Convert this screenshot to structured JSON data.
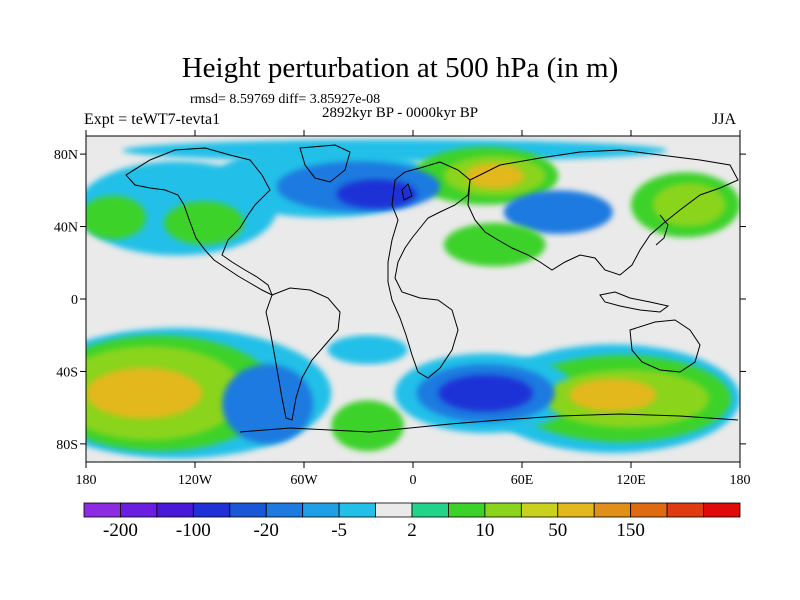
{
  "title": "Height perturbation at 500 hPa (in m)",
  "stats": "rmsd= 8.59769 diff= 3.85927e-08",
  "expt": "Expt = teWT7-tevta1",
  "period": "2892kyr BP - 0000kyr BP",
  "season": "JJA",
  "lat_ticks": [
    {
      "value": 80,
      "label": "80N"
    },
    {
      "value": 40,
      "label": "40N"
    },
    {
      "value": 0,
      "label": "0"
    },
    {
      "value": -40,
      "label": "40S"
    },
    {
      "value": -80,
      "label": "80S"
    }
  ],
  "lon_ticks": [
    {
      "value": -180,
      "label": "180"
    },
    {
      "value": -120,
      "label": "120W"
    },
    {
      "value": -60,
      "label": "60W"
    },
    {
      "value": 0,
      "label": "0"
    },
    {
      "value": 60,
      "label": "60E"
    },
    {
      "value": 120,
      "label": "120E"
    },
    {
      "value": 180,
      "label": "180"
    }
  ],
  "map_extent": {
    "lon": [
      -180,
      180
    ],
    "lat": [
      -90,
      90
    ]
  },
  "colorbar": {
    "colors": [
      "#8d2be2",
      "#6a1fe0",
      "#4a18d8",
      "#1f30d6",
      "#1a56d8",
      "#1c7ae0",
      "#1f9fe6",
      "#22c0e8",
      "#eaeaea",
      "#22d48a",
      "#3cd22a",
      "#8ad41e",
      "#c8d21e",
      "#e2b81e",
      "#e09018",
      "#e06a12",
      "#e03a10",
      "#e00a0a"
    ],
    "labels": [
      {
        "boundary": 1,
        "text": "-200"
      },
      {
        "boundary": 3,
        "text": "-100"
      },
      {
        "boundary": 5,
        "text": "-20"
      },
      {
        "boundary": 7,
        "text": "-5"
      },
      {
        "boundary": 9,
        "text": "2"
      },
      {
        "boundary": 11,
        "text": "10"
      },
      {
        "boundary": 13,
        "text": "50"
      },
      {
        "boundary": 15,
        "text": "150"
      }
    ]
  },
  "field_regions": [
    {
      "name": "south-pacific-high",
      "level": "#e2b81e",
      "lon": -148,
      "lat": -52,
      "rlon": 32,
      "rlat": 14
    },
    {
      "name": "south-pacific-high-ring",
      "level": "#8ad41e",
      "lon": -145,
      "lat": -52,
      "rlon": 52,
      "rlat": 26
    },
    {
      "name": "south-pacific-ring2",
      "level": "#3cd22a",
      "lon": -140,
      "lat": -52,
      "rlon": 65,
      "rlat": 32
    },
    {
      "name": "south-pacific-outer",
      "level": "#22c0e8",
      "lon": -130,
      "lat": -52,
      "rlon": 85,
      "rlat": 36
    },
    {
      "name": "south-indian-high-outer",
      "level": "#22c0e8",
      "lon": 110,
      "lat": -55,
      "rlon": 70,
      "rlat": 30
    },
    {
      "name": "south-indian-high-ring",
      "level": "#3cd22a",
      "lon": 115,
      "lat": -55,
      "rlon": 60,
      "rlat": 24
    },
    {
      "name": "south-indian-high",
      "level": "#8ad41e",
      "lon": 118,
      "lat": -55,
      "rlon": 45,
      "rlat": 16
    },
    {
      "name": "south-indian-core",
      "level": "#e2b81e",
      "lon": 110,
      "lat": -53,
      "rlon": 24,
      "rlat": 9
    },
    {
      "name": "south-atlantic-low-outer",
      "level": "#22c0e8",
      "lon": 40,
      "lat": -52,
      "rlon": 50,
      "rlat": 22
    },
    {
      "name": "south-atlantic-low",
      "level": "#1c7ae0",
      "lon": 40,
      "lat": -52,
      "rlon": 38,
      "rlat": 16
    },
    {
      "name": "south-atlantic-low-core",
      "level": "#1f30d6",
      "lon": 40,
      "lat": -52,
      "rlon": 26,
      "rlat": 10
    },
    {
      "name": "south-american-trough",
      "level": "#1c7ae0",
      "lon": -80,
      "lat": -58,
      "rlon": 25,
      "rlat": 22
    },
    {
      "name": "south-green-blob",
      "level": "#3cd22a",
      "lon": -25,
      "lat": -70,
      "rlon": 20,
      "rlat": 14
    },
    {
      "name": "tropical-cyan-band",
      "level": "#22c0e8",
      "lon": -25,
      "lat": -28,
      "rlon": 22,
      "rlat": 8
    },
    {
      "name": "east-pacific-north-ring",
      "level": "#22c0e8",
      "lon": -130,
      "lat": 50,
      "rlon": 55,
      "rlat": 26
    },
    {
      "name": "north-pacific-green",
      "level": "#3cd22a",
      "lon": -165,
      "lat": 45,
      "rlon": 18,
      "rlat": 12
    },
    {
      "name": "north-america-green",
      "level": "#3cd22a",
      "lon": -115,
      "lat": 42,
      "rlon": 22,
      "rlat": 12
    },
    {
      "name": "north-atlantic-low-outer",
      "level": "#22c0e8",
      "lon": -50,
      "lat": 65,
      "rlon": 60,
      "rlat": 20
    },
    {
      "name": "north-atlantic-low",
      "level": "#1c7ae0",
      "lon": -30,
      "lat": 62,
      "rlon": 45,
      "rlat": 14
    },
    {
      "name": "north-atlantic-low-core",
      "level": "#1f30d6",
      "lon": -20,
      "lat": 58,
      "rlon": 22,
      "rlat": 8
    },
    {
      "name": "europe-high-outer",
      "level": "#3cd22a",
      "lon": 40,
      "lat": 68,
      "rlon": 40,
      "rlat": 16
    },
    {
      "name": "europe-high",
      "level": "#8ad41e",
      "lon": 45,
      "lat": 68,
      "rlon": 28,
      "rlat": 11
    },
    {
      "name": "europe-high-core",
      "level": "#e2b81e",
      "lon": 45,
      "lat": 68,
      "rlon": 16,
      "rlat": 7
    },
    {
      "name": "central-asia-low",
      "level": "#1c7ae0",
      "lon": 80,
      "lat": 48,
      "rlon": 30,
      "rlat": 12
    },
    {
      "name": "mideast-green",
      "level": "#3cd22a",
      "lon": 45,
      "lat": 30,
      "rlon": 28,
      "rlat": 12
    },
    {
      "name": "east-asia-high-outer",
      "level": "#3cd22a",
      "lon": 150,
      "lat": 52,
      "rlon": 30,
      "rlat": 18
    },
    {
      "name": "east-asia-high",
      "level": "#8ad41e",
      "lon": 152,
      "lat": 52,
      "rlon": 20,
      "rlat": 12
    },
    {
      "name": "north-cyan-band",
      "level": "#22c0e8",
      "lon": -10,
      "lat": 82,
      "rlon": 150,
      "rlat": 6
    }
  ]
}
